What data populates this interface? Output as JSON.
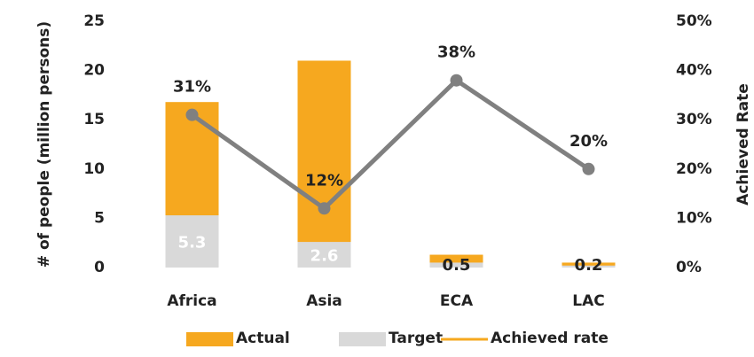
{
  "chart_data": {
    "type": "bar",
    "barmode": "overlay",
    "categories": [
      "Africa",
      "Asia",
      "ECA",
      "LAC"
    ],
    "series": [
      {
        "name": "Actual",
        "type": "bar",
        "color": "#f6a81f",
        "values": [
          16.8,
          21.0,
          1.3,
          0.5
        ]
      },
      {
        "name": "Target",
        "type": "bar",
        "color": "#d9d9d9",
        "values": [
          5.3,
          2.6,
          0.5,
          0.2
        ]
      },
      {
        "name": "Achieved rate",
        "type": "line",
        "axis": "y2",
        "color": "#808080",
        "values": [
          31,
          12,
          38,
          20
        ],
        "value_labels": [
          "31%",
          "12%",
          "38%",
          "20%"
        ]
      }
    ],
    "ylabel": "# of people (million persons)",
    "y2label": "Achieved Rate",
    "ylim": [
      0,
      25
    ],
    "yticks": [
      0,
      5,
      10,
      15,
      20,
      25
    ],
    "y2lim": [
      0,
      50
    ],
    "y2ticks": [
      {
        "value": 0,
        "label": "0%"
      },
      {
        "value": 10,
        "label": "10%"
      },
      {
        "value": 20,
        "label": "20%"
      },
      {
        "value": 30,
        "label": "30%"
      },
      {
        "value": 40,
        "label": "40%"
      },
      {
        "value": 50,
        "label": "50%"
      }
    ],
    "legend": "bottom"
  }
}
